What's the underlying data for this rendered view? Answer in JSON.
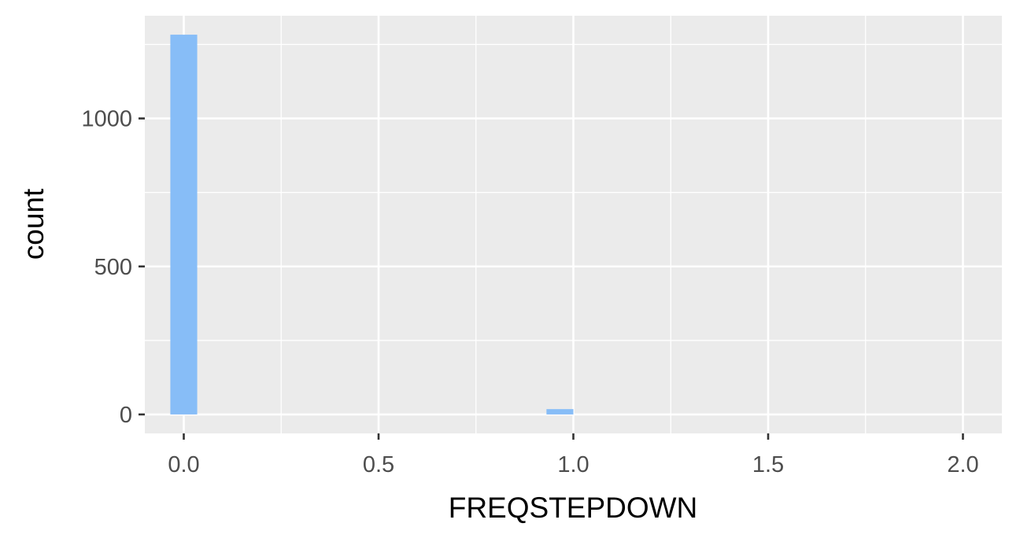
{
  "chart_data": {
    "type": "bar",
    "subtype": "histogram",
    "title": "",
    "xlabel": "FREQSTEPDOWN",
    "ylabel": "count",
    "bins": [
      {
        "x": 0.0,
        "count": 1283
      },
      {
        "x": 0.9655,
        "count": 18
      }
    ],
    "bin_width": 0.069,
    "xlim": [
      -0.1,
      2.1
    ],
    "ylim": [
      -64,
      1347
    ],
    "x_ticks": [
      0.0,
      0.5,
      1.0,
      1.5,
      2.0
    ],
    "x_tick_labels": [
      "0.0",
      "0.5",
      "1.0",
      "1.5",
      "2.0"
    ],
    "x_minor_ticks": [
      0.25,
      0.75,
      1.25,
      1.75
    ],
    "y_ticks": [
      0,
      500,
      1000
    ],
    "y_tick_labels": [
      "0",
      "500",
      "1000"
    ],
    "y_minor_ticks": [
      250,
      750,
      1250
    ],
    "grid": true,
    "legend": "none",
    "bar_color": "#87bdf7",
    "panel_background": "#ebebeb"
  }
}
